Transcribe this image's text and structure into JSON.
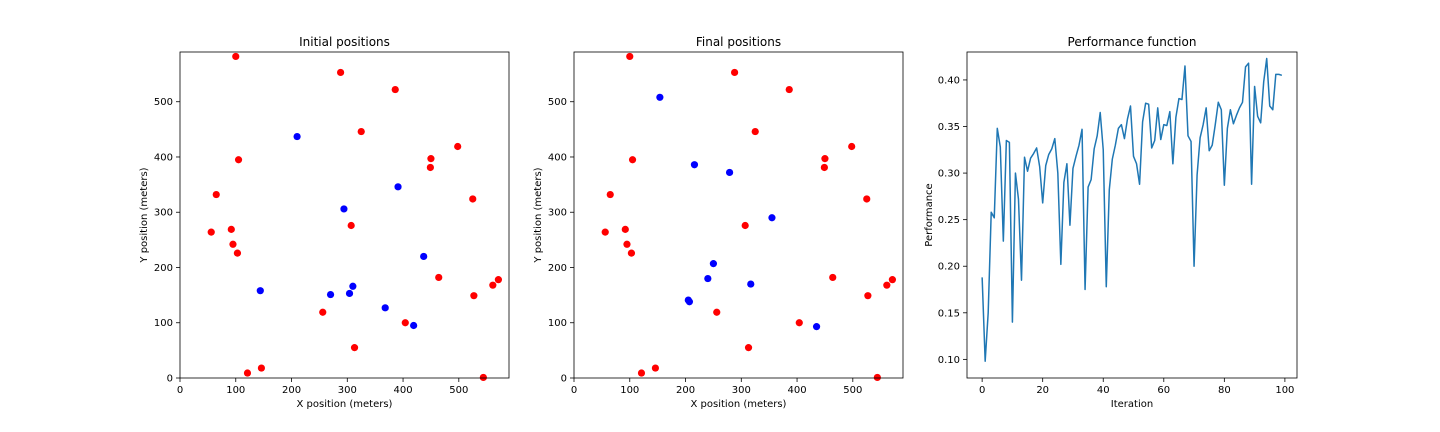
{
  "chart_data": [
    {
      "type": "scatter",
      "title": "Initial positions",
      "xlabel": "X position (meters)",
      "ylabel": "Y position (meters)",
      "xlim": [
        0,
        590
      ],
      "ylim": [
        0,
        590
      ],
      "xticks": [
        0,
        100,
        200,
        300,
        400,
        500
      ],
      "yticks": [
        0,
        100,
        200,
        300,
        400,
        500
      ],
      "series": [
        {
          "name": "red",
          "color": "#ff0000",
          "points": [
            [
              100,
              582
            ],
            [
              288,
              553
            ],
            [
              386,
              522
            ],
            [
              325,
              446
            ],
            [
              498,
              419
            ],
            [
              450,
              397
            ],
            [
              105,
              395
            ],
            [
              449,
              381
            ],
            [
              65,
              332
            ],
            [
              525,
              324
            ],
            [
              307,
              276
            ],
            [
              92,
              269
            ],
            [
              56,
              264
            ],
            [
              95,
              242
            ],
            [
              103,
              226
            ],
            [
              464,
              182
            ],
            [
              571,
              178
            ],
            [
              561,
              168
            ],
            [
              527,
              149
            ],
            [
              256,
              119
            ],
            [
              404,
              100
            ],
            [
              313,
              55
            ],
            [
              146,
              18
            ],
            [
              121,
              9
            ],
            [
              544,
              1
            ]
          ]
        },
        {
          "name": "blue",
          "color": "#0000ff",
          "points": [
            [
              210,
              437
            ],
            [
              391,
              346
            ],
            [
              294,
              306
            ],
            [
              437,
              220
            ],
            [
              310,
              166
            ],
            [
              144,
              158
            ],
            [
              270,
              151
            ],
            [
              304,
              153
            ],
            [
              368,
              127
            ],
            [
              419,
              95
            ]
          ]
        }
      ]
    },
    {
      "type": "scatter",
      "title": "Final positions",
      "xlabel": "X position (meters)",
      "ylabel": "Y position (meters)",
      "xlim": [
        0,
        590
      ],
      "ylim": [
        0,
        590
      ],
      "xticks": [
        0,
        100,
        200,
        300,
        400,
        500
      ],
      "yticks": [
        0,
        100,
        200,
        300,
        400,
        500
      ],
      "series": [
        {
          "name": "red",
          "color": "#ff0000",
          "points": [
            [
              100,
              582
            ],
            [
              288,
              553
            ],
            [
              386,
              522
            ],
            [
              325,
              446
            ],
            [
              498,
              419
            ],
            [
              450,
              397
            ],
            [
              105,
              395
            ],
            [
              449,
              381
            ],
            [
              65,
              332
            ],
            [
              525,
              324
            ],
            [
              307,
              276
            ],
            [
              92,
              269
            ],
            [
              56,
              264
            ],
            [
              95,
              242
            ],
            [
              103,
              226
            ],
            [
              464,
              182
            ],
            [
              571,
              178
            ],
            [
              561,
              168
            ],
            [
              527,
              149
            ],
            [
              256,
              119
            ],
            [
              404,
              100
            ],
            [
              313,
              55
            ],
            [
              146,
              18
            ],
            [
              121,
              9
            ],
            [
              544,
              1
            ]
          ]
        },
        {
          "name": "blue",
          "color": "#0000ff",
          "points": [
            [
              154,
              508
            ],
            [
              216,
              386
            ],
            [
              279,
              372
            ],
            [
              355,
              290
            ],
            [
              250,
              207
            ],
            [
              240,
              180
            ],
            [
              317,
              170
            ],
            [
              205,
              141
            ],
            [
              207,
              138
            ],
            [
              435,
              93
            ]
          ]
        }
      ]
    },
    {
      "type": "line",
      "title": "Performance function",
      "xlabel": "Iteration",
      "ylabel": "Performance",
      "xlim": [
        -5,
        104
      ],
      "ylim": [
        0.08,
        0.43
      ],
      "xticks": [
        0,
        20,
        40,
        60,
        80,
        100
      ],
      "yticks": [
        0.1,
        0.15,
        0.2,
        0.25,
        0.3,
        0.35,
        0.4
      ],
      "color": "#1f77b4",
      "x": [
        0,
        1,
        2,
        3,
        4,
        5,
        6,
        7,
        8,
        9,
        10,
        11,
        12,
        13,
        14,
        15,
        16,
        17,
        18,
        19,
        20,
        21,
        22,
        23,
        24,
        25,
        26,
        27,
        28,
        29,
        30,
        31,
        32,
        33,
        34,
        35,
        36,
        37,
        38,
        39,
        40,
        41,
        42,
        43,
        44,
        45,
        46,
        47,
        48,
        49,
        50,
        51,
        52,
        53,
        54,
        55,
        56,
        57,
        58,
        59,
        60,
        61,
        62,
        63,
        64,
        65,
        66,
        67,
        68,
        69,
        70,
        71,
        72,
        73,
        74,
        75,
        76,
        77,
        78,
        79,
        80,
        81,
        82,
        83,
        84,
        85,
        86,
        87,
        88,
        89,
        90,
        91,
        92,
        93,
        94,
        95,
        96,
        97,
        98,
        99
      ],
      "y": [
        0.188,
        0.098,
        0.15,
        0.258,
        0.252,
        0.348,
        0.328,
        0.227,
        0.335,
        0.333,
        0.14,
        0.3,
        0.272,
        0.185,
        0.317,
        0.302,
        0.316,
        0.321,
        0.327,
        0.307,
        0.268,
        0.308,
        0.32,
        0.326,
        0.337,
        0.3,
        0.202,
        0.29,
        0.31,
        0.244,
        0.305,
        0.318,
        0.33,
        0.347,
        0.175,
        0.285,
        0.293,
        0.326,
        0.34,
        0.365,
        0.325,
        0.178,
        0.282,
        0.315,
        0.33,
        0.348,
        0.352,
        0.337,
        0.358,
        0.372,
        0.318,
        0.31,
        0.288,
        0.355,
        0.375,
        0.374,
        0.327,
        0.335,
        0.37,
        0.336,
        0.352,
        0.351,
        0.366,
        0.31,
        0.36,
        0.38,
        0.379,
        0.415,
        0.34,
        0.334,
        0.2,
        0.298,
        0.338,
        0.352,
        0.37,
        0.324,
        0.33,
        0.352,
        0.376,
        0.368,
        0.287,
        0.348,
        0.368,
        0.353,
        0.362,
        0.37,
        0.376,
        0.414,
        0.418,
        0.288,
        0.393,
        0.361,
        0.354,
        0.398,
        0.423,
        0.372,
        0.368,
        0.406,
        0.406,
        0.405
      ]
    }
  ]
}
